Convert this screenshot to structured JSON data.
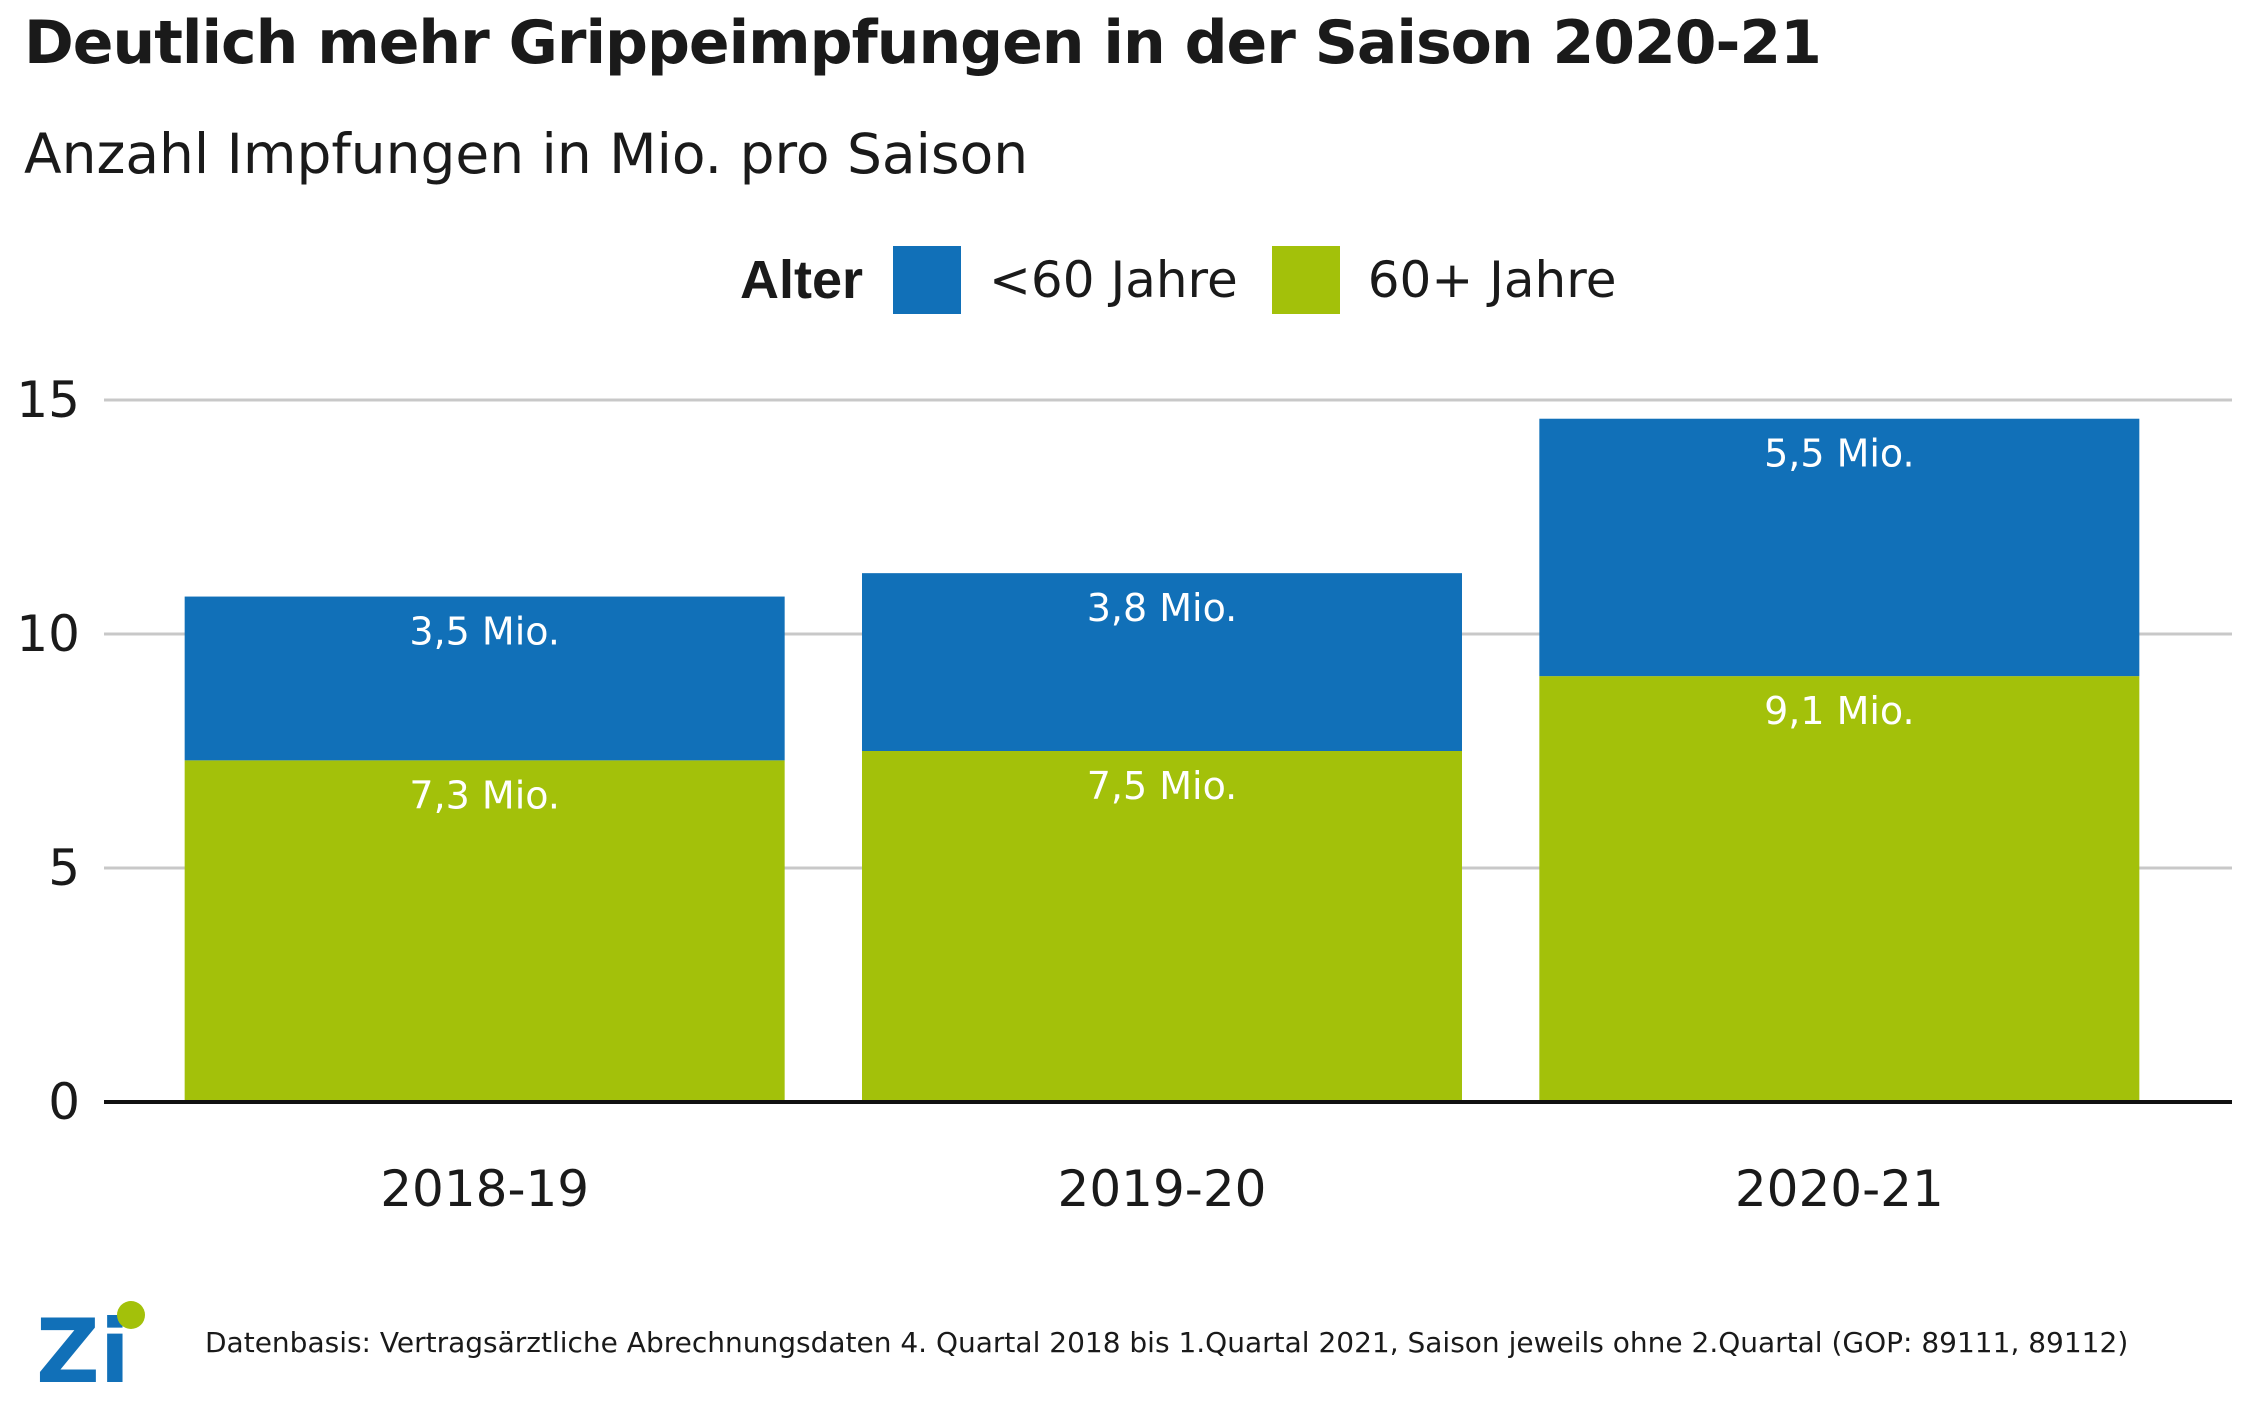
{
  "title": "Deutlich mehr Grippeimpfungen in der Saison 2020-21",
  "subtitle": "Anzahl Impfungen in Mio. pro Saison",
  "legend": {
    "title": "Alter",
    "items": [
      {
        "label": "<60 Jahre",
        "color": "#1170b8"
      },
      {
        "label": "60+ Jahre",
        "color": "#a3c10a"
      }
    ]
  },
  "chart_data": {
    "type": "bar",
    "stacked": true,
    "categories": [
      "2018-19",
      "2019-20",
      "2020-21"
    ],
    "series": [
      {
        "name": "60+ Jahre",
        "color": "#a3c10a",
        "values": [
          7.3,
          7.5,
          9.1
        ],
        "labels": [
          "7,3 Mio.",
          "7,5 Mio.",
          "9,1 Mio."
        ]
      },
      {
        "name": "<60 Jahre",
        "color": "#1170b8",
        "values": [
          3.5,
          3.8,
          5.5
        ],
        "labels": [
          "3,5 Mio.",
          "3,8 Mio.",
          "5,5 Mio."
        ]
      }
    ],
    "ylim": [
      0,
      15
    ],
    "yticks": [
      "0",
      "5",
      "10",
      "15"
    ],
    "grid": true,
    "legend_position": "top"
  },
  "footer": {
    "logo": "Zi",
    "source": "Datenbasis: Vertragsärztliche Abrechnungsdaten 4. Quartal 2018 bis 1.Quartal 2021, Saison jeweils ohne 2.Quartal (GOP: 89111, 89112)"
  }
}
